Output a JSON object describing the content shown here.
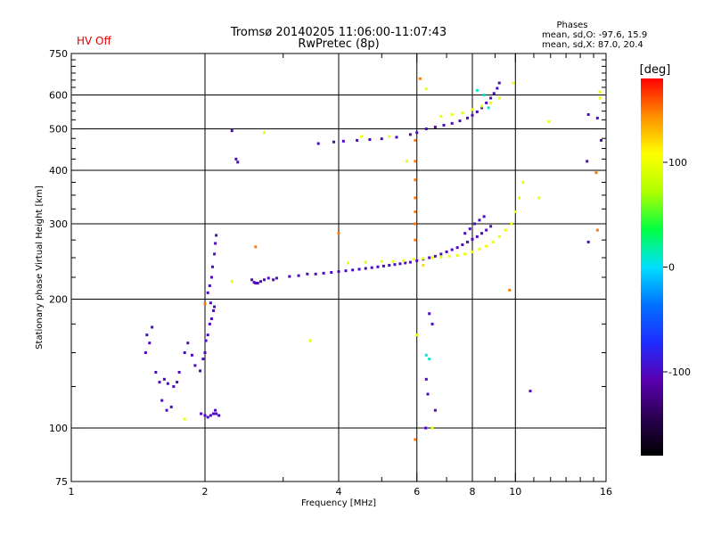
{
  "header": {
    "title_line1": "Tromsø 20140205 11:06:00-11:07:43",
    "title_line2": "RwPretec (8p)",
    "status": "HV Off",
    "stats_title": "Phases",
    "stats_line1": "mean, sd,O: -97.6, 15.9",
    "stats_line2": "mean, sd,X:  87.0, 20.4"
  },
  "colorbar": {
    "label": "[deg]",
    "ticks": [
      {
        "label": "100",
        "value": 100
      },
      {
        "label": "0",
        "value": 0
      },
      {
        "label": "-100",
        "value": -100
      }
    ],
    "range": [
      -180,
      180
    ],
    "colormap": [
      "#000000",
      "#2a0050",
      "#5a00b0",
      "#1f2cff",
      "#0070ff",
      "#00e0ff",
      "#00ff40",
      "#b0ff00",
      "#ffff00",
      "#ff9000",
      "#ff0000"
    ]
  },
  "chart_data": {
    "type": "scatter",
    "title": "Tromsø 20140205 11:06:00-11:07:43",
    "subtitle": "RwPretec (8p)",
    "xlabel": "Frequency [MHz]",
    "ylabel": "Stationary phase Virtual Height [km]",
    "xscale": "log",
    "yscale": "log",
    "xlim": [
      1,
      16
    ],
    "ylim": [
      75,
      750
    ],
    "x_ticks": [
      {
        "label": "1",
        "value": 1
      },
      {
        "label": "2",
        "value": 2
      },
      {
        "label": "4",
        "value": 4
      },
      {
        "label": "6",
        "value": 6
      },
      {
        "label": "8",
        "value": 8
      },
      {
        "label": "10",
        "value": 10
      },
      {
        "label": "16",
        "value": 16
      }
    ],
    "y_ticks": [
      {
        "label": "75",
        "value": 75
      },
      {
        "label": "100",
        "value": 100
      },
      {
        "label": "200",
        "value": 200
      },
      {
        "label": "300",
        "value": 300
      },
      {
        "label": "400",
        "value": 400
      },
      {
        "label": "500",
        "value": 500
      },
      {
        "label": "600",
        "value": 600
      },
      {
        "label": "750",
        "value": 750
      }
    ],
    "x_gridlines": [
      2,
      4,
      6,
      8,
      10
    ],
    "y_gridlines": [
      100,
      200,
      300,
      400,
      500,
      600
    ],
    "grid": true,
    "color_by": "phase_deg",
    "series": [
      {
        "points": [
          [
            1.48,
            165,
            -100
          ],
          [
            1.5,
            158,
            -100
          ],
          [
            1.52,
            172,
            -100
          ],
          [
            1.47,
            150,
            -100
          ],
          [
            1.55,
            135,
            -100
          ],
          [
            1.58,
            128,
            -100
          ],
          [
            1.62,
            130,
            -100
          ],
          [
            1.65,
            127,
            -100
          ],
          [
            1.7,
            125,
            -100
          ],
          [
            1.73,
            128,
            -100
          ],
          [
            1.75,
            135,
            -100
          ],
          [
            1.68,
            112,
            -100
          ],
          [
            1.64,
            110,
            -100
          ],
          [
            1.6,
            116,
            -100
          ],
          [
            1.8,
            150,
            -100
          ],
          [
            1.83,
            158,
            -100
          ],
          [
            1.87,
            148,
            -100
          ],
          [
            1.9,
            140,
            -100
          ],
          [
            1.95,
            136,
            -100
          ],
          [
            1.98,
            145,
            -100
          ],
          [
            2.0,
            150,
            -100
          ],
          [
            1.96,
            108,
            -100
          ],
          [
            2.0,
            107,
            -100
          ],
          [
            2.03,
            106,
            -100
          ],
          [
            2.06,
            107,
            -100
          ],
          [
            2.09,
            108,
            -100
          ],
          [
            2.12,
            108,
            -100
          ],
          [
            2.15,
            107,
            -100
          ],
          [
            2.11,
            110,
            -100
          ],
          [
            2.01,
            160,
            -100
          ],
          [
            2.03,
            165,
            -100
          ],
          [
            2.05,
            175,
            -100
          ],
          [
            2.07,
            180,
            -100
          ],
          [
            2.09,
            188,
            -100
          ],
          [
            2.1,
            192,
            -100
          ],
          [
            2.06,
            196,
            -100
          ],
          [
            2.03,
            207,
            -100
          ],
          [
            2.05,
            215,
            -100
          ],
          [
            2.07,
            225,
            -100
          ],
          [
            2.08,
            238,
            -100
          ],
          [
            2.1,
            255,
            -100
          ],
          [
            2.11,
            270,
            -100
          ],
          [
            2.12,
            282,
            -100
          ],
          [
            2.3,
            495,
            -100
          ],
          [
            2.35,
            425,
            -100
          ],
          [
            2.37,
            418,
            -100
          ],
          [
            2.55,
            222,
            -100
          ],
          [
            2.58,
            219,
            -100
          ],
          [
            2.6,
            218,
            -100
          ],
          [
            2.63,
            218,
            -100
          ],
          [
            2.67,
            220,
            -100
          ],
          [
            2.72,
            222,
            -100
          ],
          [
            2.78,
            224,
            -100
          ],
          [
            2.85,
            222,
            -100
          ],
          [
            2.9,
            224,
            -100
          ],
          [
            3.1,
            226,
            -100
          ],
          [
            3.25,
            227,
            -100
          ],
          [
            3.4,
            229,
            -100
          ],
          [
            3.55,
            229,
            -100
          ],
          [
            3.7,
            230,
            -100
          ],
          [
            3.85,
            231,
            -100
          ],
          [
            4.0,
            232,
            -100
          ],
          [
            4.15,
            233,
            -100
          ],
          [
            4.3,
            234,
            -100
          ],
          [
            4.45,
            235,
            -100
          ],
          [
            4.6,
            236,
            -100
          ],
          [
            4.75,
            237,
            -100
          ],
          [
            4.9,
            238,
            -100
          ],
          [
            5.05,
            239,
            -100
          ],
          [
            5.2,
            240,
            -100
          ],
          [
            5.35,
            241,
            -100
          ],
          [
            5.5,
            242,
            -100
          ],
          [
            5.65,
            243,
            -100
          ],
          [
            5.8,
            244,
            -100
          ],
          [
            6.0,
            246,
            -100
          ],
          [
            6.2,
            248,
            -100
          ],
          [
            6.4,
            250,
            -100
          ],
          [
            6.6,
            252,
            -100
          ],
          [
            6.8,
            255,
            -100
          ],
          [
            7.0,
            258,
            -100
          ],
          [
            7.2,
            261,
            -100
          ],
          [
            7.4,
            264,
            -100
          ],
          [
            7.6,
            268,
            -100
          ],
          [
            7.8,
            272,
            -100
          ],
          [
            8.0,
            276,
            -100
          ],
          [
            8.2,
            280,
            -100
          ],
          [
            8.4,
            285,
            -100
          ],
          [
            8.6,
            290,
            -100
          ],
          [
            8.8,
            296,
            -100
          ],
          [
            7.7,
            285,
            -100
          ],
          [
            7.9,
            292,
            -100
          ],
          [
            8.1,
            300,
            -100
          ],
          [
            8.3,
            306,
            -100
          ],
          [
            8.5,
            312,
            -100
          ],
          [
            3.6,
            462,
            -100
          ],
          [
            3.9,
            466,
            -100
          ],
          [
            4.1,
            468,
            -100
          ],
          [
            4.4,
            470,
            -100
          ],
          [
            4.7,
            472,
            -100
          ],
          [
            5.0,
            474,
            -100
          ],
          [
            5.4,
            478,
            -100
          ],
          [
            5.8,
            485,
            -100
          ],
          [
            6.0,
            490,
            -100
          ],
          [
            6.3,
            500,
            -100
          ],
          [
            6.6,
            505,
            -100
          ],
          [
            6.9,
            510,
            -100
          ],
          [
            7.2,
            515,
            -100
          ],
          [
            7.5,
            522,
            -100
          ],
          [
            7.8,
            530,
            -100
          ],
          [
            8.0,
            538,
            -100
          ],
          [
            8.2,
            548,
            -100
          ],
          [
            8.4,
            560,
            -100
          ],
          [
            8.6,
            575,
            -100
          ],
          [
            8.8,
            590,
            -100
          ],
          [
            8.95,
            605,
            -100
          ],
          [
            9.1,
            622,
            -100
          ],
          [
            9.2,
            640,
            -100
          ],
          [
            6.4,
            185,
            -100
          ],
          [
            6.5,
            175,
            -100
          ],
          [
            6.3,
            130,
            -100
          ],
          [
            6.35,
            120,
            -100
          ],
          [
            6.6,
            110,
            -100
          ],
          [
            6.28,
            100,
            -100
          ],
          [
            10.8,
            122,
            -100
          ],
          [
            14.6,
            540,
            -100
          ],
          [
            15.3,
            530,
            -100
          ],
          [
            15.6,
            470,
            -100
          ],
          [
            14.5,
            420,
            -100
          ],
          [
            14.6,
            272,
            -100
          ]
        ]
      },
      {
        "points": [
          [
            5.3,
            245,
            100
          ],
          [
            5.6,
            246,
            100
          ],
          [
            5.9,
            248,
            100
          ],
          [
            6.2,
            249,
            100
          ],
          [
            6.5,
            250,
            100
          ],
          [
            6.8,
            251,
            100
          ],
          [
            7.1,
            252,
            100
          ],
          [
            7.4,
            253,
            100
          ],
          [
            7.7,
            255,
            100
          ],
          [
            8.0,
            258,
            100
          ],
          [
            8.3,
            262,
            100
          ],
          [
            8.6,
            266,
            100
          ],
          [
            8.9,
            272,
            100
          ],
          [
            9.2,
            280,
            100
          ],
          [
            9.5,
            290,
            100
          ],
          [
            9.8,
            300,
            100
          ],
          [
            10.0,
            320,
            100
          ],
          [
            10.2,
            345,
            100
          ],
          [
            10.4,
            375,
            100
          ],
          [
            4.2,
            243,
            100
          ],
          [
            4.6,
            244,
            100
          ],
          [
            5.0,
            245,
            100
          ],
          [
            7.6,
            545,
            100
          ],
          [
            8.0,
            555,
            100
          ],
          [
            8.4,
            565,
            100
          ],
          [
            8.8,
            575,
            100
          ],
          [
            9.2,
            590,
            100
          ],
          [
            6.8,
            535,
            100
          ],
          [
            7.2,
            540,
            100
          ],
          [
            4.5,
            480,
            100
          ],
          [
            5.2,
            480,
            100
          ],
          [
            5.7,
            420,
            100
          ],
          [
            6.0,
            165,
            100
          ],
          [
            6.2,
            240,
            120
          ],
          [
            11.9,
            520,
            100
          ],
          [
            11.3,
            345,
            100
          ],
          [
            15.5,
            610,
            100
          ],
          [
            15.5,
            590,
            100
          ],
          [
            9.9,
            640,
            100
          ],
          [
            2.72,
            490,
            100
          ],
          [
            2.3,
            220,
            100
          ],
          [
            1.8,
            105,
            100
          ],
          [
            3.45,
            160,
            100
          ],
          [
            6.3,
            620,
            100
          ],
          [
            6.5,
            100,
            100
          ]
        ]
      },
      {
        "points": [
          [
            5.95,
            470,
            150
          ],
          [
            5.95,
            420,
            150
          ],
          [
            5.95,
            380,
            150
          ],
          [
            5.95,
            345,
            150
          ],
          [
            5.95,
            320,
            150
          ],
          [
            5.95,
            300,
            150
          ],
          [
            5.95,
            275,
            150
          ],
          [
            6.1,
            655,
            150
          ],
          [
            4.0,
            285,
            150
          ],
          [
            2.6,
            265,
            150
          ],
          [
            2.0,
            195,
            150
          ],
          [
            5.95,
            94,
            150
          ],
          [
            15.2,
            395,
            150
          ],
          [
            15.3,
            290,
            150
          ],
          [
            9.7,
            210,
            150
          ]
        ]
      },
      {
        "points": [
          [
            6.4,
            145,
            10
          ],
          [
            6.3,
            148,
            10
          ],
          [
            8.2,
            615,
            10
          ],
          [
            8.5,
            600,
            10
          ],
          [
            8.7,
            560,
            10
          ]
        ]
      }
    ]
  }
}
